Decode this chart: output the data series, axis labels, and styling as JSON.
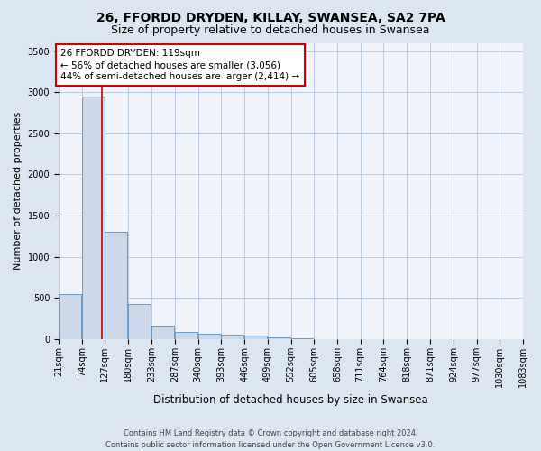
{
  "title": "26, FFORDD DRYDEN, KILLAY, SWANSEA, SA2 7PA",
  "subtitle": "Size of property relative to detached houses in Swansea",
  "xlabel": "Distribution of detached houses by size in Swansea",
  "ylabel": "Number of detached properties",
  "footer_line1": "Contains HM Land Registry data © Crown copyright and database right 2024.",
  "footer_line2": "Contains public sector information licensed under the Open Government Licence v3.0.",
  "bins": [
    21,
    74,
    127,
    180,
    233,
    287,
    340,
    393,
    446,
    499,
    552,
    605,
    658,
    711,
    764,
    818,
    871,
    924,
    977,
    1030,
    1083
  ],
  "counts": [
    550,
    2950,
    1300,
    420,
    160,
    90,
    60,
    50,
    40,
    20,
    5,
    3,
    2,
    1,
    1,
    1,
    1,
    1,
    1,
    1
  ],
  "bar_color": "#cdd9ea",
  "bar_edge_color": "#6699cc",
  "property_sqm": 119,
  "annotation_line1": "26 FFORDD DRYDEN: 119sqm",
  "annotation_line2": "← 56% of detached houses are smaller (3,056)",
  "annotation_line3": "44% of semi-detached houses are larger (2,414) →",
  "annotation_box_color": "white",
  "annotation_box_edge_color": "#cc0000",
  "marker_line_color": "#cc0000",
  "ylim": [
    0,
    3600
  ],
  "yticks": [
    0,
    500,
    1000,
    1500,
    2000,
    2500,
    3000,
    3500
  ],
  "background_color": "#dce6f1",
  "plot_background_color": "#f0f4fa",
  "title_fontsize": 10,
  "subtitle_fontsize": 9,
  "ylabel_fontsize": 8,
  "xlabel_fontsize": 8.5,
  "tick_fontsize": 7,
  "annotation_fontsize": 7.5,
  "footer_fontsize": 6
}
